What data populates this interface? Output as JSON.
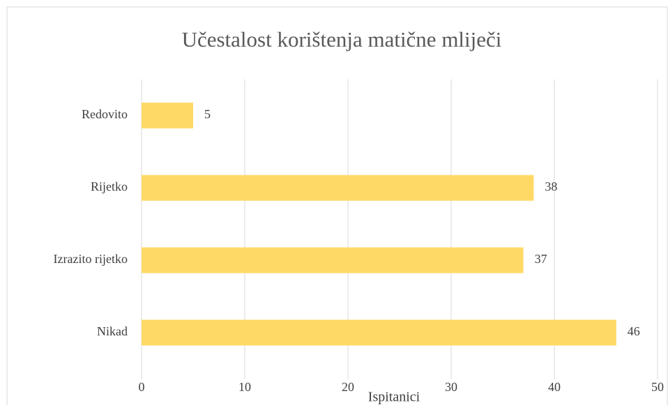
{
  "chart_data": {
    "type": "bar",
    "orientation": "horizontal",
    "title": "Učestalost korištenja matične mliječi",
    "x_label": "Ispitanici",
    "categories": [
      "Redovito",
      "Rijetko",
      "Izrazito rijetko",
      "Nikad"
    ],
    "values": [
      5,
      38,
      37,
      46
    ],
    "color": "#ffd966",
    "xlim": [
      0,
      50
    ],
    "xticks": [
      0,
      10,
      20,
      30,
      40,
      50
    ],
    "grid": true
  }
}
